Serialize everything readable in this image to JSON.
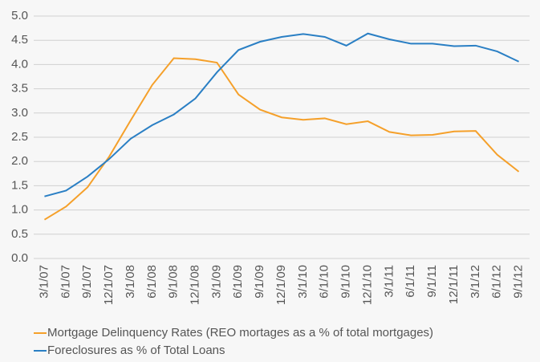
{
  "chart_data": {
    "type": "line",
    "categories": [
      "3/1/07",
      "6/1/07",
      "9/1/07",
      "12/1/07",
      "3/1/08",
      "6/1/08",
      "9/1/08",
      "12/1/08",
      "3/1/09",
      "6/1/09",
      "9/1/09",
      "12/1/09",
      "3/1/10",
      "6/1/10",
      "9/1/10",
      "12/1/10",
      "3/1/11",
      "6/1/11",
      "9/1/11",
      "12/1/11",
      "3/1/12",
      "6/1/12",
      "9/1/12"
    ],
    "series": [
      {
        "name": "Mortgage Delinquency Rates (REO mortages as a % of total mortgages)",
        "color": "#f5a02a",
        "values": [
          0.8,
          1.07,
          1.47,
          2.1,
          2.85,
          3.58,
          4.13,
          4.11,
          4.04,
          3.38,
          3.07,
          2.91,
          2.86,
          2.89,
          2.77,
          2.83,
          2.61,
          2.54,
          2.55,
          2.62,
          2.63,
          2.14,
          1.79
        ]
      },
      {
        "name": "Foreclosures as % of Total Loans",
        "color": "#2a7fc4",
        "values": [
          1.28,
          1.4,
          1.69,
          2.05,
          2.47,
          2.75,
          2.97,
          3.3,
          3.84,
          4.3,
          4.47,
          4.57,
          4.63,
          4.57,
          4.39,
          4.64,
          4.52,
          4.43,
          4.43,
          4.38,
          4.39,
          4.27,
          4.06
        ]
      }
    ],
    "ylim": [
      0,
      5
    ],
    "yticks": [
      {
        "value": 0,
        "label": "0.0"
      },
      0.5,
      {
        "value": 1,
        "label": "1.0"
      },
      1.5,
      {
        "value": 2,
        "label": "2.0"
      },
      2.5,
      {
        "value": 3,
        "label": "3.0"
      },
      3.5,
      {
        "value": 4,
        "label": "4.0"
      },
      4.5,
      {
        "value": 5,
        "label": "5.0"
      }
    ],
    "grid": true
  }
}
